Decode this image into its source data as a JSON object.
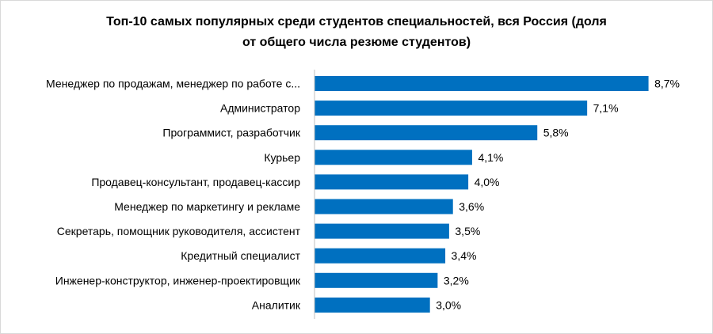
{
  "chart_data": {
    "type": "bar",
    "orientation": "horizontal",
    "title_lines": [
      "Топ-10 самых популярных среди студентов специальностей, вся Россия (доля",
      "от общего числа резюме студентов)"
    ],
    "categories": [
      "Менеджер по продажам, менеджер по работе с...",
      "Администратор",
      "Программист, разработчик",
      "Курьер",
      "Продавец-консультант, продавец-кассир",
      "Менеджер по маркетингу и рекламе",
      "Секретарь, помощник руководителя, ассистент",
      "Кредитный специалист",
      "Инженер-конструктор, инженер-проектировщик",
      "Аналитик"
    ],
    "values": [
      8.7,
      7.1,
      5.8,
      4.1,
      4.0,
      3.6,
      3.5,
      3.4,
      3.2,
      3.0
    ],
    "data_labels": [
      "8,7%",
      "7,1%",
      "5,8%",
      "4,1%",
      "4,0%",
      "3,6%",
      "3,5%",
      "3,4%",
      "3,2%",
      "3,0%"
    ],
    "unit": "%",
    "xlim": [
      0,
      9
    ],
    "grid": false,
    "legend": "none",
    "bar_color": "#0070C0"
  }
}
